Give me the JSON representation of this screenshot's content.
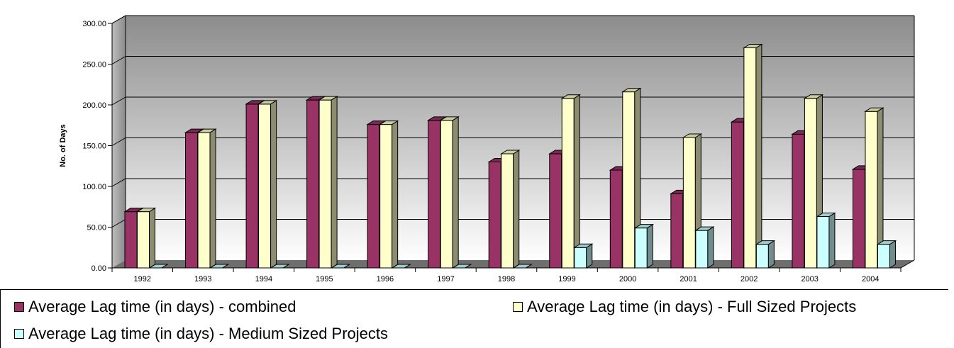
{
  "chart_data": {
    "type": "bar",
    "title": "",
    "xlabel": "",
    "ylabel": "No. of Days",
    "ylim": [
      0,
      300
    ],
    "yticks": [
      "0.00",
      "50.00",
      "100.00",
      "150.00",
      "200.00",
      "250.00",
      "300.00"
    ],
    "grid": true,
    "legend_position": "bottom",
    "categories": [
      "1992",
      "1993",
      "1994",
      "1995",
      "1996",
      "1997",
      "1998",
      "1999",
      "2000",
      "2001",
      "2002",
      "2003",
      "2004"
    ],
    "series": [
      {
        "name": "Average Lag time (in days)  - combined",
        "color": "#993366",
        "values": [
          69,
          166,
          201,
          206,
          176,
          181,
          130,
          140,
          120,
          91,
          179,
          164,
          121
        ]
      },
      {
        "name": "Average Lag time (in days)  - Full Sized Projects",
        "color": "#FFFFCC",
        "values": [
          69,
          166,
          201,
          206,
          176,
          181,
          140,
          208,
          216,
          160,
          270,
          208,
          192
        ]
      },
      {
        "name": "Average Lag time (in days)  - Medium Sized Projects",
        "color": "#CCFFFF",
        "values": [
          0,
          0,
          0,
          0,
          0,
          0,
          0,
          25,
          49,
          46,
          29,
          63,
          29
        ]
      }
    ]
  }
}
